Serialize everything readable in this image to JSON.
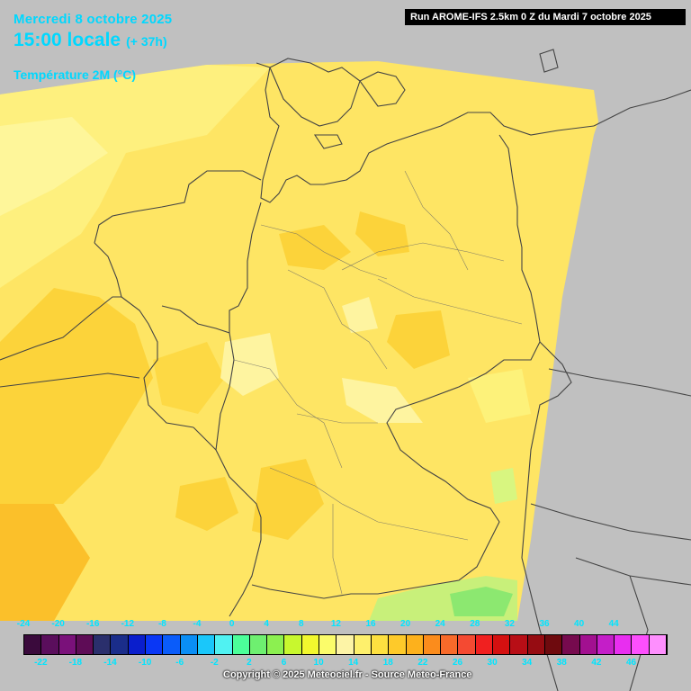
{
  "header": {
    "date": "Mercredi 8 octobre 2025",
    "time": "15:00 locale",
    "lead": "(+ 37h)",
    "parameter": "Température 2M (°C)",
    "run": "Run AROME-IFS 2.5km 0 Z du Mardi 7 octobre 2025"
  },
  "legend": {
    "top_labels": [
      "-24",
      "-20",
      "-16",
      "-12",
      "-8",
      "-4",
      "0",
      "4",
      "8",
      "12",
      "16",
      "20",
      "24",
      "28",
      "32",
      "36",
      "40",
      "44"
    ],
    "bottom_labels": [
      "-22",
      "-18",
      "-14",
      "-10",
      "-6",
      "-2",
      "2",
      "6",
      "10",
      "14",
      "18",
      "22",
      "26",
      "30",
      "34",
      "38",
      "42",
      "46"
    ],
    "colors": [
      "#3a0a3c",
      "#5a0e5c",
      "#7a117a",
      "#5e0c56",
      "#2a2f6c",
      "#1a2d8a",
      "#0a1ecc",
      "#0a37f5",
      "#0a5cfa",
      "#0a8ef5",
      "#1ac7fa",
      "#50f2f2",
      "#4cff9a",
      "#6ef070",
      "#8cf050",
      "#c8f82e",
      "#f2f82e",
      "#fbfc6a",
      "#fdf4a6",
      "#fef06c",
      "#fee040",
      "#feca2a",
      "#fdb11c",
      "#fb8c1c",
      "#f86a2a",
      "#f44a32",
      "#f02020",
      "#d41010",
      "#b80e16",
      "#960c12",
      "#6e0a0e",
      "#760a4e",
      "#a21090",
      "#c41ec8",
      "#e82ef0",
      "#fd4ffd",
      "#fe8ffe"
    ],
    "text_color": "#00e5ff"
  },
  "map": {
    "background": "#c0c0c0",
    "base_color": "#fee86a",
    "border_color": "#444444"
  },
  "copyright": "Copyright © 2025 Meteociel.fr - Source Meteo-France"
}
